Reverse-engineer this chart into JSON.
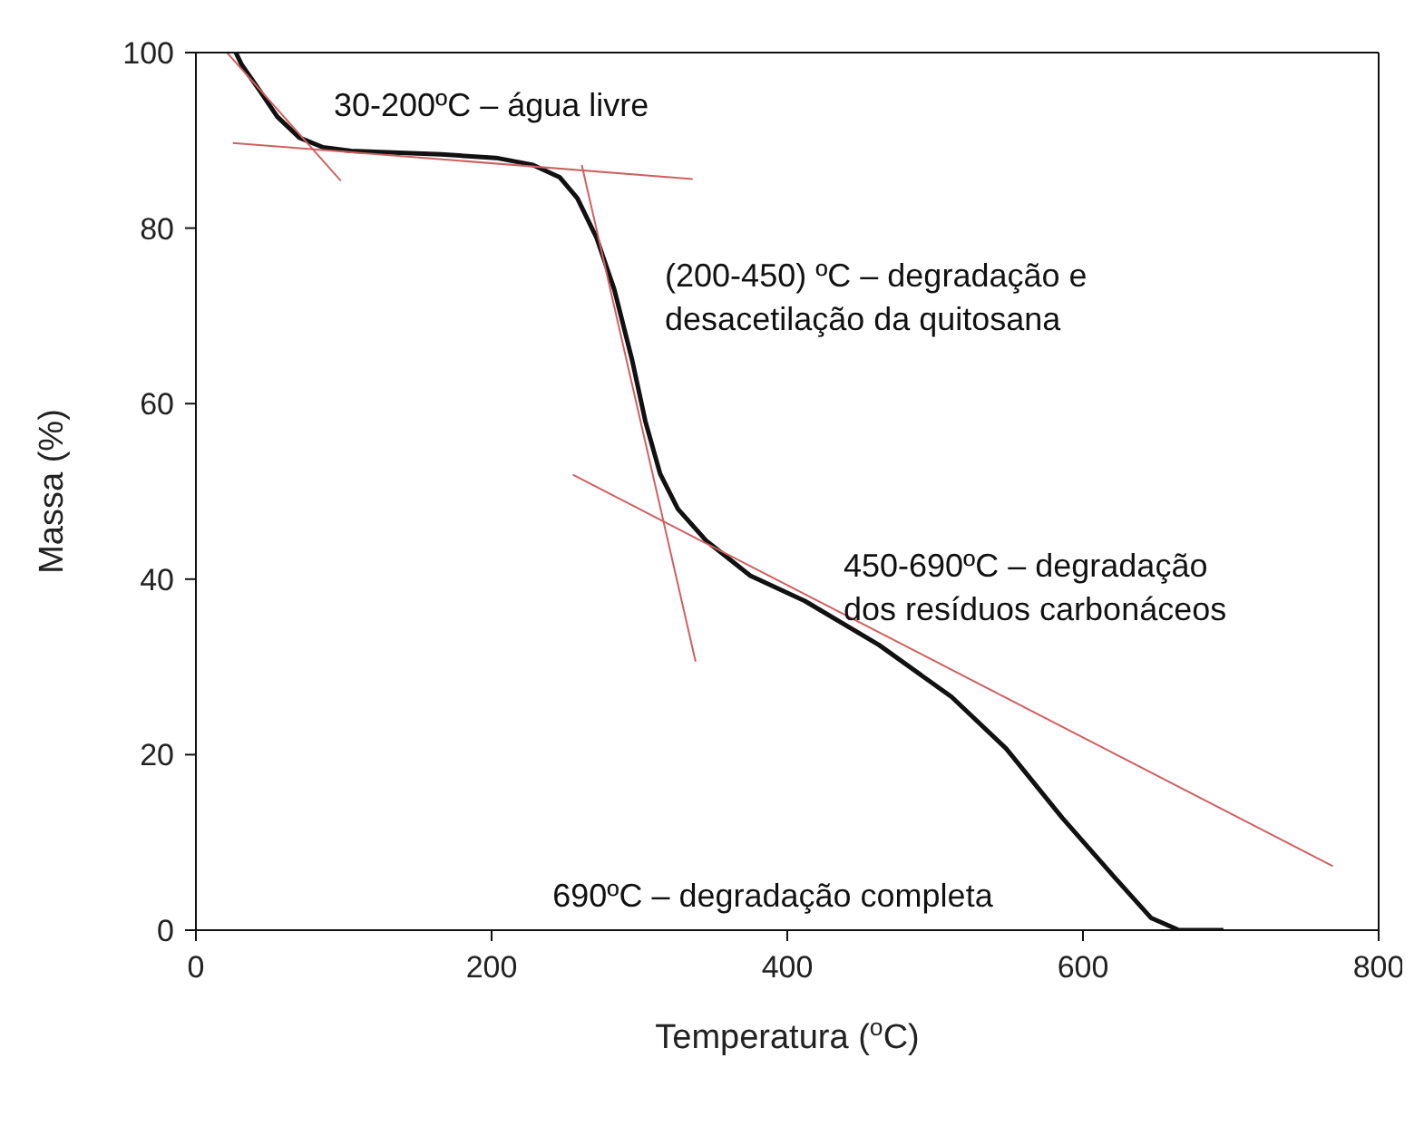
{
  "chart_data": {
    "type": "line",
    "xlabel": "Temperatura ($^{o}$C)",
    "ylabel": "Massa (%)",
    "xlim": [
      0,
      800
    ],
    "xticks": [
      0,
      200,
      400,
      600,
      800
    ],
    "ylim": [
      0,
      100
    ],
    "yticks": [
      0,
      20,
      40,
      60,
      80,
      100
    ],
    "series": [
      {
        "color": "#111111",
        "x": [
          27,
          31,
          43,
          55,
          70,
          86,
          105,
          166,
          203,
          228,
          246,
          258,
          271,
          283,
          295,
          304,
          314,
          326,
          345,
          375,
          412,
          462,
          511,
          548,
          586,
          622,
          646,
          665,
          695
        ],
        "values": [
          100,
          98.6,
          95.7,
          92.7,
          90.3,
          89.2,
          88.8,
          88.4,
          88,
          87.2,
          85.8,
          83.4,
          78.9,
          73,
          65,
          58,
          52,
          48,
          44.4,
          40.4,
          37.5,
          32.5,
          26.6,
          20.7,
          12.8,
          5.9,
          1.4,
          0,
          0
        ]
      },
      {
        "color": "#d06060",
        "x": [
          21,
          98
        ],
        "values": [
          100,
          85.4
        ]
      },
      {
        "color": "#d06060",
        "x": [
          25,
          336
        ],
        "values": [
          89.7,
          85.6
        ]
      },
      {
        "color": "#d06060",
        "x": [
          261,
          338
        ],
        "values": [
          87.2,
          30.6
        ]
      },
      {
        "color": "#d06060",
        "x": [
          255,
          769
        ],
        "values": [
          51.9,
          7.3
        ]
      }
    ],
    "annotations": [
      "30-200ºC – água livre",
      "(200-450) ºC – degradação e\ndesacetilação da quitosana",
      "450-690ºC – degradação\ndos resíduos carbonáceos",
      "690ºC – degradação completa"
    ]
  }
}
